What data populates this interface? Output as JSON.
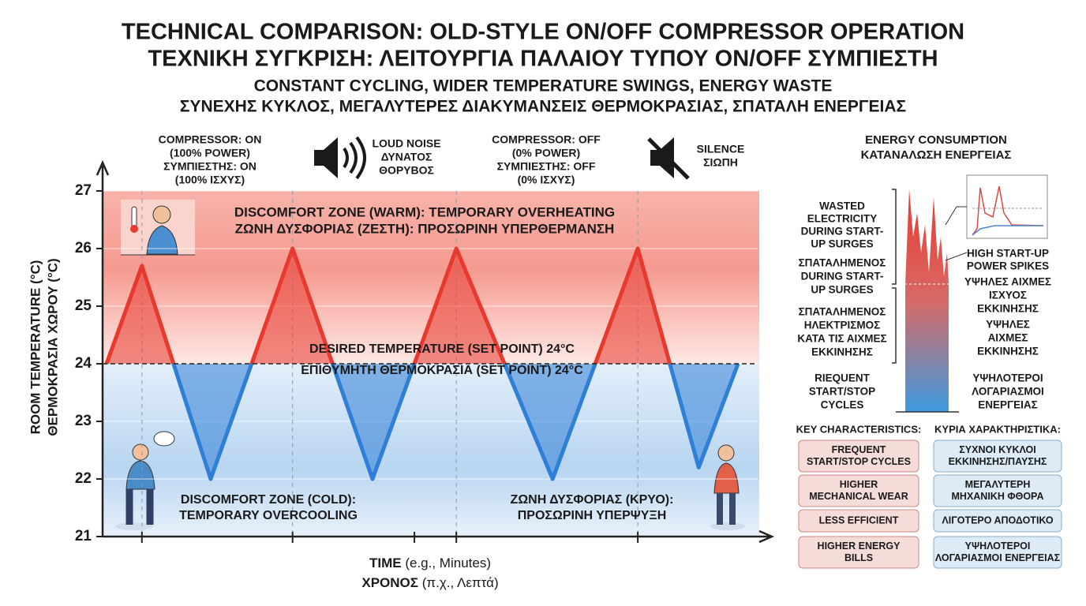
{
  "chart_data": {
    "type": "line",
    "title": [
      "TECHNICAL COMPARISON: OLD-STYLE ON/OFF COMPRESSOR OPERATION",
      "ΤΕΧΝΙΚΗ ΣΥΓΚΡΙΣΗ: ΛΕΙΤΟΥΡΓΙΑ ΠΑΛΑΙΟΥ ΤΥΠΟΥ ON/OFF ΣΥΜΠΙΕΣΤΗ"
    ],
    "subtitle": [
      "CONSTANT CYCLING, WIDER TEMPERATURE SWINGS, ENERGY WASTE",
      "ΣΥΝΕΧΗΣ ΚΥΚΛΟΣ, ΜΕΓΑΛΥΤΕΡΕΣ ΔΙΑΚΥΜΑΝΣΕΙΣ ΘΕΡΜΟΚΡΑΣΙΑΣ, ΣΠΑΤΑΛΗ ΕΝΕΡΓΕΙΑΣ"
    ],
    "ylabel": [
      "ROOM TEMPERATURE (°C)",
      "ΘΕΡΜΟΚΡΑΣΙΑ ΧΩΡΟΥ (°C)"
    ],
    "xlabel": {
      "main": "TIME",
      "note": "(e.g., Minutes)",
      "main_gr": "ΧΡΟΝΟΣ",
      "note_gr": "(π.χ., Λεπτά)"
    },
    "x": [
      0.6,
      6,
      16.5,
      29,
      41.2,
      54,
      68.7,
      81.7,
      91,
      97
    ],
    "values": [
      24,
      25.7,
      22,
      26,
      22,
      26,
      22,
      26,
      22.2,
      24
    ],
    "xlim": [
      0,
      100
    ],
    "ylim": [
      21,
      27
    ],
    "yticks": [
      21,
      22,
      23,
      24,
      25,
      26,
      27
    ],
    "warm_color": "#e8392f",
    "cold_color": "#2f7fd6",
    "set_point": {
      "value": 24,
      "labels": [
        "DESIRED TEMPERATURE (SET POINT) 24°C",
        "ΕΠΙΘΥΜΗΤΗ ΘΕΡΜΟΚΡΑΣΙΑ (SET POINT) 24°C"
      ]
    },
    "annotations": {
      "compressor_on": [
        "COMPRESSOR: ON",
        "(100% POWER)",
        "ΣΥΜΠΙΕΣΤΗΣ: ON",
        "(100% ΙΣΧΥΣ)"
      ],
      "loud_noise": [
        "LOUD NOISE",
        "ΔΥΝΑΤΟΣ",
        "ΘΟΡΥΒΟΣ"
      ],
      "compressor_off": [
        "COMPRESSOR: OFF",
        "(0% POWER)",
        "ΣΥΜΠΙΕΣΤΗΣ: OFF",
        "(0% ΙΣΧΥΣ)"
      ],
      "silence": [
        "SILENCE",
        "ΣΙΩΠΗ"
      ],
      "warm_zone": [
        "DISCOMFORT ZONE (WARM): TEMPORARY OVERHEATING",
        "ΖΩΝΗ ΔΥΣΦΟΡΙΑΣ (ΖΕΣΤΗ): ΠΡΟΣΩΡΙΝΗ ΥΠΕΡΘΕΡΜΑΝΣΗ"
      ],
      "cold_zone": [
        "DISCOMFORT ZONE (COLD):",
        "TEMPORARY OVERCOOLING"
      ],
      "cold_zone_gr": [
        "ΖΩΝΗ ΔΥΣΦΟΡΙΑΣ (ΚΡΥΟ):",
        "ΠΡΟΣΩΡΙΝΗ ΥΠΕΡΨΥΞΗ"
      ]
    }
  },
  "energy_panel": {
    "title": [
      "ENERGY CONSUMPTION",
      "ΚΑΤΑΝΑΛΩΣΗ ΕΝΕΡΓΕΙΑΣ"
    ],
    "left_labels": [
      [
        "WASTED",
        "ELECTRICITY",
        "DURING START-",
        "UP SURGES"
      ],
      [
        "ΣΠΑΤΑΛΗΜΕΝΟΣ",
        "DURING START-",
        "UP SURGES"
      ],
      [
        "ΣΠΑΤΑΛΗΜΕΝΟΣ",
        "ΗΛΕΚΤΡΙΣΜΟΣ",
        "ΚΑΤΑ ΤΙΣ ΑΙΧΜΕΣ",
        "ΕΚΚΙΝΗΣΗΣ"
      ],
      [
        "RIEQUENT",
        "START/STOP",
        "CYCLES"
      ]
    ],
    "right_labels": [
      [
        "HIGH START-UP",
        "POWER SPIKES"
      ],
      [
        "ΥΨΗΛΕΣ ΑΙΧΜΕΣ",
        "ΙΣΧΥΟΣ",
        "ΕΚΚΙΝΗΣΗΣ"
      ],
      [
        "ΥΨΗΛΕΣ",
        "ΑΙΧΜΕΣ",
        "ΕΚΚΙΝΗΣΗΣ"
      ],
      [
        "ΥΨΗΛΟΤΕΡΟΙ",
        "ΛΟΓΑΡΙΑΣΜΟΙ",
        "ΕΝΕΡΓΕΙΑΣ"
      ]
    ]
  },
  "key_characteristics": {
    "header_en": "KEY CHARACTERISTICS:",
    "header_gr": "ΚΥΡΙΑ ΧΑΡΑΚΤΗΡΙΣΤΙΚΑ:",
    "items_en": [
      [
        "FREQUENT",
        "START/STOP CYCLES"
      ],
      [
        "HIGHER",
        "MECHANICAL WEAR"
      ],
      [
        "LESS EFFICIENT"
      ],
      [
        "HIGHER ENERGY",
        "BILLS"
      ]
    ],
    "items_gr": [
      [
        "ΣΥΧΝΟΙ ΚΥΚΛΟΙ",
        "ΕΚΚΙΝΗΣΗΣ/ΠΑΥΣΗΣ"
      ],
      [
        "ΜΕΓΑΛΥΤΕΡΗ",
        "ΜΗΧΑΝΙΚΗ ΦΘΟΡΑ"
      ],
      [
        "ΛΙΓΟΤΕΡΟ ΑΠΟΔΟΤΙΚΟ"
      ],
      [
        "ΥΨΗΛΟΤΕΡΟΙ",
        "ΛΟΓΑΡΙΑΣΜΟΙ ΕΝΕΡΓΕΙΑΣ"
      ]
    ]
  }
}
